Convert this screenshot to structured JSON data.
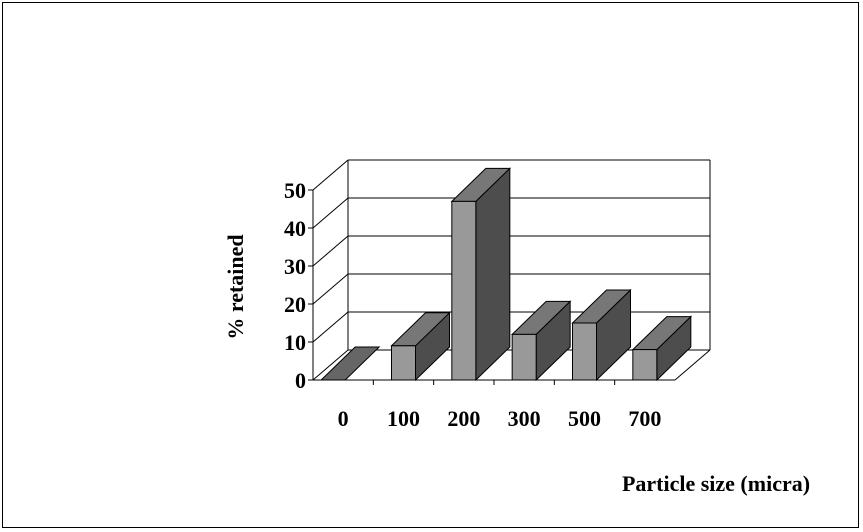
{
  "chart_data": {
    "type": "bar",
    "style": "3d-column",
    "categories": [
      "0",
      "100",
      "200",
      "300",
      "500",
      "700"
    ],
    "values": [
      0,
      9,
      47,
      12,
      15,
      8
    ],
    "ylabel": "% retained",
    "xlabel": "Particle size (micra)",
    "ylim": [
      0,
      50
    ],
    "yticks": [
      "0",
      "10",
      "20",
      "30",
      "40",
      "50"
    ],
    "grid": true,
    "legend": "none",
    "colors": {
      "bar_front": "#999999",
      "bar_top": "#777777",
      "bar_side": "#4d4d4d",
      "floor_bar": "#666666"
    }
  }
}
